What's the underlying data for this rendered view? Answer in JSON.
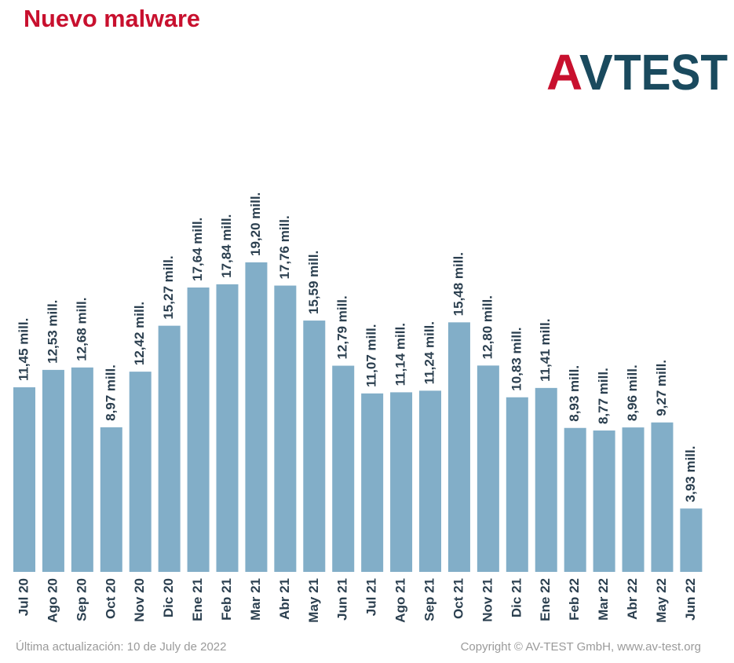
{
  "chart_data": {
    "type": "bar",
    "title": "Nuevo malware",
    "logo": [
      "A",
      "V",
      "TEST"
    ],
    "categories": [
      "Jul 20",
      "Ago 20",
      "Sep 20",
      "Oct 20",
      "Nov 20",
      "Dic 20",
      "Ene 21",
      "Feb 21",
      "Mar 21",
      "Abr 21",
      "May 21",
      "Jun 21",
      "Jul 21",
      "Ago 21",
      "Sep 21",
      "Oct 21",
      "Nov 21",
      "Dic 21",
      "Ene 22",
      "Feb 22",
      "Mar 22",
      "Abr 22",
      "May 22",
      "Jun 22"
    ],
    "values": [
      11.45,
      12.53,
      12.68,
      8.97,
      12.42,
      15.27,
      17.64,
      17.84,
      19.2,
      17.76,
      15.59,
      12.79,
      11.07,
      11.14,
      11.24,
      15.48,
      12.8,
      10.83,
      11.41,
      8.93,
      8.77,
      8.96,
      9.27,
      3.93
    ],
    "value_labels": [
      "11,45 mill.",
      "12,53 mill.",
      "12,68 mill.",
      "8,97 mill.",
      "12,42 mill.",
      "15,27 mill.",
      "17,64 mill.",
      "17,84 mill.",
      "19,20 mill.",
      "17,76 mill.",
      "15,59 mill.",
      "12,79 mill.",
      "11,07 mill.",
      "11,14 mill.",
      "11,24 mill.",
      "15,48 mill.",
      "12,80 mill.",
      "10,83 mill.",
      "11,41 mill.",
      "8,93 mill.",
      "8,77 mill.",
      "8,96 mill.",
      "9,27 mill.",
      "3,93 mill."
    ],
    "color": "#82aec8",
    "footer_left": "Última actualización: 10 de July de 2022",
    "footer_right": "Copyright © AV-TEST GmbH, www.av-test.org"
  }
}
